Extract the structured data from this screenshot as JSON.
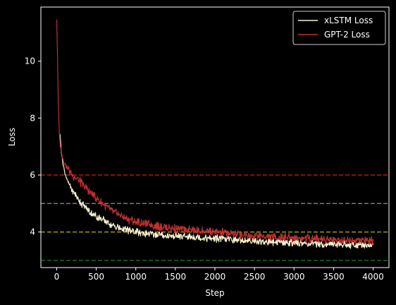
{
  "chart_data": {
    "type": "line",
    "title": "",
    "xlabel": "Step",
    "ylabel": "Loss",
    "xlim": [
      -200,
      4200
    ],
    "ylim": [
      2.75,
      11.9
    ],
    "xticks": [
      0,
      500,
      1000,
      1500,
      2000,
      2500,
      3000,
      3500,
      4000
    ],
    "yticks": [
      4,
      6,
      8,
      10
    ],
    "xtick_labels": [
      "0",
      "500",
      "1000",
      "1500",
      "2000",
      "2500",
      "3000",
      "3500",
      "4000"
    ],
    "ytick_labels": [
      "4",
      "6",
      "8",
      "10"
    ],
    "grid": false,
    "legend": "top-right",
    "series": [
      {
        "name": "GPT-2 Loss",
        "color": "#c0302f",
        "x": [
          0,
          10,
          20,
          30,
          40,
          60,
          80,
          100,
          150,
          200,
          250,
          300,
          400,
          500,
          600,
          700,
          800,
          900,
          1000,
          1100,
          1200,
          1300,
          1400,
          1500,
          1600,
          1700,
          1800,
          1900,
          2000,
          2200,
          2400,
          2600,
          2800,
          3000,
          3200,
          3400,
          3600,
          3800,
          4000
        ],
        "y": [
          11.5,
          10.2,
          8.6,
          7.7,
          7.2,
          6.8,
          6.55,
          6.4,
          6.2,
          6.0,
          5.9,
          5.75,
          5.45,
          5.2,
          4.95,
          4.75,
          4.6,
          4.45,
          4.35,
          4.3,
          4.25,
          4.2,
          4.15,
          4.12,
          4.1,
          4.08,
          4.05,
          4.02,
          4.0,
          3.95,
          3.9,
          3.85,
          3.82,
          3.8,
          3.78,
          3.75,
          3.72,
          3.7,
          3.68
        ]
      },
      {
        "name": "xLSTM Loss",
        "color": "#f7f3d0",
        "x": [
          40,
          60,
          80,
          100,
          150,
          200,
          250,
          300,
          400,
          500,
          600,
          700,
          800,
          900,
          1000,
          1100,
          1200,
          1300,
          1400,
          1500,
          1600,
          1700,
          1800,
          1900,
          2000,
          2200,
          2400,
          2600,
          2800,
          3000,
          3200,
          3400,
          3600,
          3800,
          4000
        ],
        "y": [
          7.5,
          6.8,
          6.4,
          6.1,
          5.7,
          5.45,
          5.25,
          5.05,
          4.75,
          4.55,
          4.4,
          4.25,
          4.12,
          4.05,
          4.0,
          3.95,
          3.92,
          3.9,
          3.88,
          3.86,
          3.84,
          3.82,
          3.8,
          3.78,
          3.77,
          3.74,
          3.7,
          3.67,
          3.64,
          3.62,
          3.6,
          3.58,
          3.56,
          3.55,
          3.54
        ]
      }
    ],
    "reference_lines": [
      {
        "y": 6,
        "color": "#b01818",
        "style": "dashed"
      },
      {
        "y": 5,
        "color": "#7a7a7a",
        "style": "dashed"
      },
      {
        "y": 4,
        "color": "#9a9a1a",
        "style": "dashed"
      },
      {
        "y": 3,
        "color": "#1f6a1f",
        "style": "dashed"
      }
    ]
  }
}
